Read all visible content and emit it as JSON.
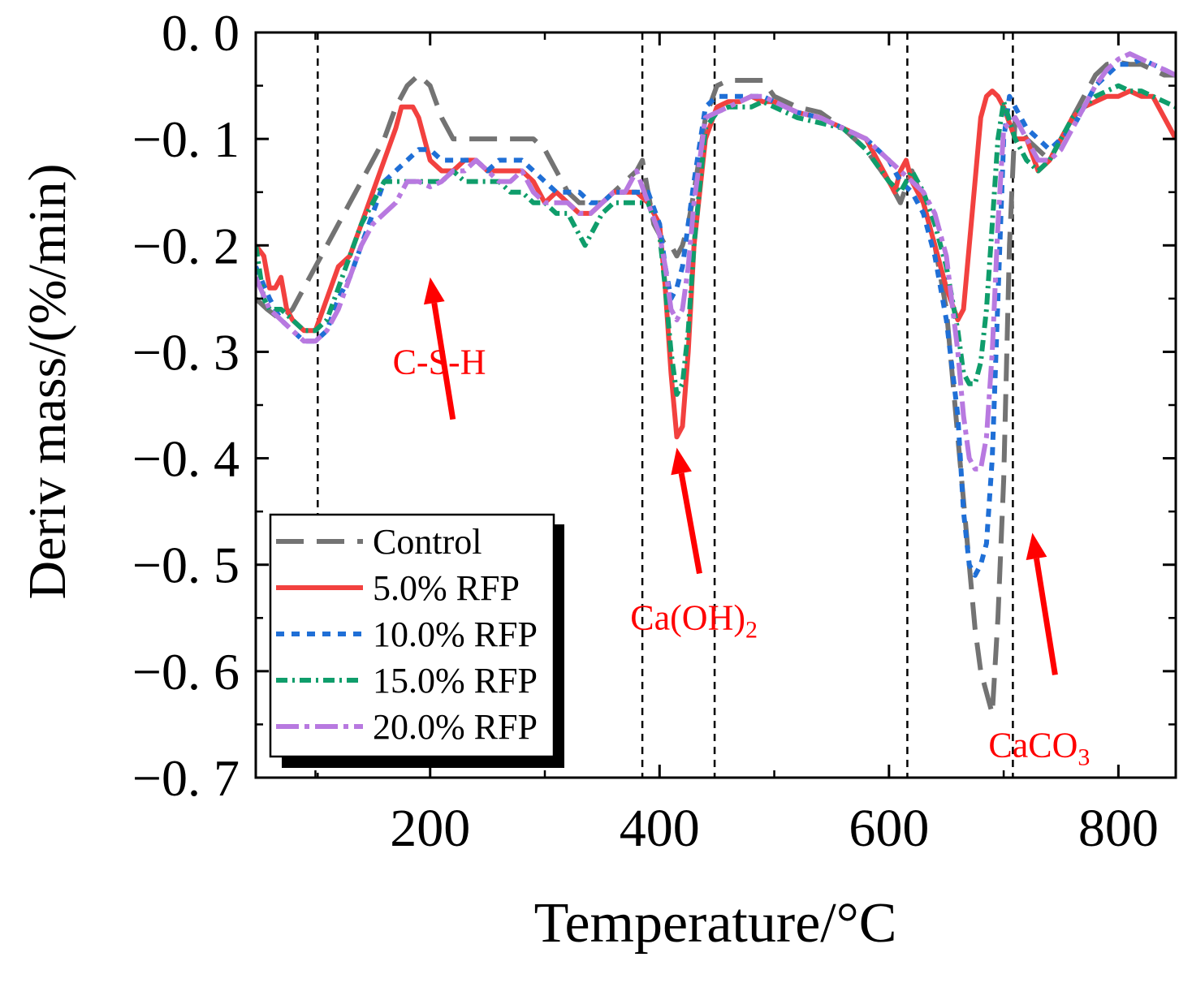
{
  "chart_data": {
    "type": "line",
    "xlabel": "Temperature/°C",
    "ylabel": "Deriv mass/(%/min)",
    "xlim": [
      48,
      850
    ],
    "ylim": [
      -0.7,
      0.0
    ],
    "xticks": [
      200,
      400,
      600,
      800
    ],
    "xtick_labels": [
      "200",
      "400",
      "600",
      "800"
    ],
    "yticks": [
      0.0,
      -0.1,
      -0.2,
      -0.3,
      -0.4,
      -0.5,
      -0.6,
      -0.7
    ],
    "ytick_labels": [
      "0. 0",
      "−0. 1",
      "−0. 2",
      "−0. 3",
      "−0. 4",
      "−0. 5",
      "−0. 6",
      "−0. 7"
    ],
    "grid": false,
    "legend_position": "bottom-left",
    "vlines": [
      102,
      385,
      448,
      616,
      708
    ],
    "annotations": [
      {
        "label": "C-S-H",
        "label_main": "C-S-H",
        "label_sub": "",
        "x": 208,
        "y": -0.31,
        "arrow_to": [
          200,
          -0.23
        ]
      },
      {
        "label": "Ca(OH)2",
        "label_main": "Ca(OH)",
        "label_sub": "2",
        "x": 430,
        "y": -0.55,
        "arrow_to": [
          415,
          -0.39
        ]
      },
      {
        "label": "CaCO3",
        "label_main": "CaCO",
        "label_sub": "3",
        "x": 731,
        "y": -0.67,
        "arrow_to": [
          725,
          -0.47
        ]
      }
    ],
    "series": [
      {
        "name": "Control",
        "color": "#737373",
        "dash": "34,16",
        "x": [
          48,
          58,
          70,
          80,
          90,
          100,
          110,
          120,
          130,
          140,
          150,
          160,
          170,
          180,
          190,
          200,
          210,
          220,
          230,
          240,
          250,
          260,
          270,
          280,
          290,
          300,
          310,
          320,
          330,
          340,
          350,
          360,
          370,
          380,
          385,
          390,
          395,
          400,
          405,
          410,
          415,
          420,
          425,
          430,
          440,
          450,
          460,
          470,
          480,
          490,
          500,
          520,
          540,
          560,
          580,
          600,
          610,
          620,
          630,
          640,
          650,
          660,
          670,
          675,
          680,
          685,
          690,
          695,
          700,
          705,
          710,
          720,
          730,
          740,
          750,
          760,
          770,
          780,
          790,
          800,
          810,
          820,
          830,
          840,
          850
        ],
        "y": [
          -0.25,
          -0.26,
          -0.27,
          -0.26,
          -0.24,
          -0.22,
          -0.2,
          -0.18,
          -0.16,
          -0.14,
          -0.12,
          -0.1,
          -0.07,
          -0.05,
          -0.04,
          -0.05,
          -0.08,
          -0.1,
          -0.1,
          -0.1,
          -0.1,
          -0.1,
          -0.1,
          -0.1,
          -0.1,
          -0.11,
          -0.13,
          -0.15,
          -0.16,
          -0.16,
          -0.16,
          -0.15,
          -0.14,
          -0.13,
          -0.12,
          -0.15,
          -0.18,
          -0.19,
          -0.2,
          -0.2,
          -0.21,
          -0.2,
          -0.18,
          -0.15,
          -0.08,
          -0.05,
          -0.045,
          -0.045,
          -0.045,
          -0.045,
          -0.06,
          -0.07,
          -0.075,
          -0.09,
          -0.11,
          -0.14,
          -0.16,
          -0.13,
          -0.16,
          -0.2,
          -0.26,
          -0.38,
          -0.5,
          -0.56,
          -0.6,
          -0.62,
          -0.64,
          -0.55,
          -0.42,
          -0.2,
          -0.08,
          -0.1,
          -0.11,
          -0.12,
          -0.1,
          -0.08,
          -0.06,
          -0.04,
          -0.03,
          -0.028,
          -0.03,
          -0.03,
          -0.035,
          -0.04,
          -0.04
        ]
      },
      {
        "name": "5.0% RFP",
        "color": "#f2413f",
        "dash": "",
        "x": [
          48,
          55,
          60,
          65,
          70,
          75,
          80,
          90,
          100,
          110,
          120,
          130,
          140,
          150,
          160,
          170,
          175,
          180,
          185,
          190,
          200,
          210,
          220,
          230,
          240,
          250,
          260,
          270,
          280,
          290,
          300,
          310,
          320,
          330,
          340,
          350,
          360,
          370,
          380,
          390,
          395,
          400,
          405,
          410,
          415,
          420,
          425,
          430,
          440,
          450,
          460,
          470,
          480,
          490,
          500,
          520,
          540,
          560,
          580,
          600,
          605,
          610,
          615,
          620,
          630,
          640,
          650,
          660,
          665,
          670,
          675,
          680,
          685,
          690,
          695,
          700,
          710,
          720,
          730,
          740,
          750,
          760,
          770,
          780,
          790,
          800,
          810,
          820,
          830,
          840,
          850
        ],
        "y": [
          -0.2,
          -0.21,
          -0.24,
          -0.24,
          -0.23,
          -0.26,
          -0.27,
          -0.28,
          -0.28,
          -0.25,
          -0.22,
          -0.21,
          -0.18,
          -0.15,
          -0.12,
          -0.09,
          -0.07,
          -0.07,
          -0.07,
          -0.08,
          -0.12,
          -0.13,
          -0.13,
          -0.12,
          -0.12,
          -0.13,
          -0.13,
          -0.13,
          -0.13,
          -0.14,
          -0.16,
          -0.15,
          -0.16,
          -0.17,
          -0.17,
          -0.16,
          -0.15,
          -0.15,
          -0.15,
          -0.16,
          -0.17,
          -0.18,
          -0.24,
          -0.32,
          -0.38,
          -0.37,
          -0.3,
          -0.2,
          -0.1,
          -0.07,
          -0.065,
          -0.065,
          -0.06,
          -0.065,
          -0.065,
          -0.075,
          -0.08,
          -0.09,
          -0.1,
          -0.14,
          -0.15,
          -0.13,
          -0.12,
          -0.14,
          -0.16,
          -0.2,
          -0.24,
          -0.27,
          -0.26,
          -0.2,
          -0.14,
          -0.08,
          -0.06,
          -0.055,
          -0.06,
          -0.07,
          -0.1,
          -0.1,
          -0.13,
          -0.12,
          -0.1,
          -0.08,
          -0.07,
          -0.065,
          -0.06,
          -0.06,
          -0.055,
          -0.06,
          -0.06,
          -0.08,
          -0.1
        ]
      },
      {
        "name": "10.0% RFP",
        "color": "#1f6fd6",
        "dash": "10,9",
        "x": [
          48,
          60,
          70,
          80,
          90,
          100,
          110,
          120,
          130,
          140,
          150,
          160,
          170,
          180,
          190,
          200,
          210,
          220,
          230,
          240,
          250,
          260,
          270,
          280,
          290,
          300,
          310,
          320,
          330,
          340,
          350,
          360,
          370,
          380,
          390,
          400,
          405,
          410,
          415,
          420,
          425,
          430,
          440,
          450,
          460,
          470,
          480,
          490,
          500,
          520,
          540,
          560,
          580,
          600,
          610,
          620,
          630,
          640,
          650,
          660,
          665,
          670,
          675,
          680,
          685,
          690,
          695,
          700,
          705,
          710,
          720,
          730,
          740,
          750,
          760,
          770,
          780,
          790,
          800,
          810,
          820,
          830,
          840,
          850
        ],
        "y": [
          -0.22,
          -0.25,
          -0.27,
          -0.28,
          -0.29,
          -0.29,
          -0.28,
          -0.25,
          -0.23,
          -0.2,
          -0.17,
          -0.14,
          -0.13,
          -0.12,
          -0.11,
          -0.11,
          -0.12,
          -0.12,
          -0.12,
          -0.12,
          -0.13,
          -0.12,
          -0.12,
          -0.12,
          -0.13,
          -0.14,
          -0.15,
          -0.15,
          -0.15,
          -0.16,
          -0.16,
          -0.15,
          -0.15,
          -0.15,
          -0.15,
          -0.18,
          -0.22,
          -0.25,
          -0.24,
          -0.22,
          -0.18,
          -0.14,
          -0.07,
          -0.06,
          -0.06,
          -0.06,
          -0.06,
          -0.06,
          -0.065,
          -0.075,
          -0.08,
          -0.09,
          -0.1,
          -0.12,
          -0.14,
          -0.15,
          -0.17,
          -0.21,
          -0.27,
          -0.36,
          -0.45,
          -0.5,
          -0.51,
          -0.5,
          -0.48,
          -0.4,
          -0.25,
          -0.1,
          -0.06,
          -0.07,
          -0.09,
          -0.1,
          -0.11,
          -0.1,
          -0.09,
          -0.07,
          -0.05,
          -0.04,
          -0.03,
          -0.03,
          -0.025,
          -0.03,
          -0.035,
          -0.04
        ]
      },
      {
        "name": "15.0% RFP",
        "color": "#0f9d6b",
        "dash": "14,6,3,6",
        "x": [
          48,
          55,
          60,
          70,
          80,
          90,
          100,
          110,
          120,
          130,
          140,
          150,
          160,
          170,
          180,
          190,
          200,
          210,
          220,
          230,
          240,
          250,
          260,
          270,
          280,
          290,
          300,
          310,
          320,
          330,
          335,
          340,
          350,
          360,
          370,
          380,
          390,
          400,
          405,
          410,
          415,
          420,
          425,
          430,
          440,
          450,
          460,
          470,
          480,
          490,
          500,
          520,
          540,
          560,
          580,
          600,
          610,
          620,
          630,
          640,
          650,
          660,
          665,
          670,
          675,
          680,
          685,
          690,
          695,
          700,
          710,
          720,
          730,
          740,
          750,
          760,
          770,
          780,
          790,
          800,
          810,
          820,
          830,
          840,
          850
        ],
        "y": [
          -0.2,
          -0.25,
          -0.26,
          -0.26,
          -0.27,
          -0.28,
          -0.28,
          -0.27,
          -0.24,
          -0.21,
          -0.18,
          -0.16,
          -0.14,
          -0.14,
          -0.14,
          -0.14,
          -0.14,
          -0.14,
          -0.13,
          -0.14,
          -0.14,
          -0.14,
          -0.14,
          -0.15,
          -0.15,
          -0.16,
          -0.16,
          -0.17,
          -0.17,
          -0.19,
          -0.2,
          -0.19,
          -0.17,
          -0.16,
          -0.16,
          -0.16,
          -0.16,
          -0.19,
          -0.24,
          -0.3,
          -0.34,
          -0.33,
          -0.28,
          -0.2,
          -0.09,
          -0.075,
          -0.07,
          -0.07,
          -0.07,
          -0.065,
          -0.07,
          -0.08,
          -0.085,
          -0.09,
          -0.11,
          -0.14,
          -0.15,
          -0.13,
          -0.15,
          -0.18,
          -0.22,
          -0.28,
          -0.32,
          -0.33,
          -0.33,
          -0.31,
          -0.26,
          -0.18,
          -0.1,
          -0.065,
          -0.1,
          -0.12,
          -0.13,
          -0.12,
          -0.1,
          -0.08,
          -0.07,
          -0.06,
          -0.055,
          -0.05,
          -0.055,
          -0.055,
          -0.06,
          -0.065,
          -0.07
        ]
      },
      {
        "name": "20.0% RFP",
        "color": "#b879e0",
        "dash": "28,7,6,7",
        "x": [
          48,
          60,
          70,
          80,
          90,
          100,
          110,
          120,
          130,
          140,
          150,
          160,
          170,
          180,
          190,
          200,
          210,
          220,
          230,
          240,
          250,
          260,
          270,
          280,
          290,
          300,
          310,
          320,
          330,
          340,
          350,
          360,
          370,
          375,
          380,
          390,
          400,
          405,
          410,
          415,
          420,
          425,
          430,
          440,
          450,
          460,
          470,
          480,
          490,
          500,
          520,
          540,
          560,
          580,
          600,
          610,
          620,
          630,
          640,
          650,
          660,
          665,
          670,
          675,
          680,
          685,
          690,
          695,
          700,
          710,
          720,
          730,
          740,
          750,
          760,
          770,
          780,
          790,
          800,
          810,
          820,
          830,
          840,
          850
        ],
        "y": [
          -0.23,
          -0.26,
          -0.27,
          -0.28,
          -0.29,
          -0.29,
          -0.28,
          -0.26,
          -0.23,
          -0.2,
          -0.18,
          -0.17,
          -0.16,
          -0.14,
          -0.14,
          -0.145,
          -0.14,
          -0.13,
          -0.13,
          -0.12,
          -0.13,
          -0.14,
          -0.14,
          -0.13,
          -0.15,
          -0.16,
          -0.16,
          -0.16,
          -0.17,
          -0.17,
          -0.16,
          -0.15,
          -0.15,
          -0.14,
          -0.13,
          -0.16,
          -0.19,
          -0.22,
          -0.26,
          -0.27,
          -0.26,
          -0.22,
          -0.16,
          -0.08,
          -0.075,
          -0.07,
          -0.065,
          -0.06,
          -0.06,
          -0.065,
          -0.075,
          -0.08,
          -0.09,
          -0.1,
          -0.12,
          -0.13,
          -0.14,
          -0.15,
          -0.17,
          -0.21,
          -0.3,
          -0.36,
          -0.4,
          -0.41,
          -0.41,
          -0.38,
          -0.3,
          -0.18,
          -0.09,
          -0.08,
          -0.1,
          -0.12,
          -0.12,
          -0.11,
          -0.09,
          -0.07,
          -0.05,
          -0.035,
          -0.025,
          -0.02,
          -0.025,
          -0.03,
          -0.035,
          -0.04
        ]
      }
    ]
  }
}
